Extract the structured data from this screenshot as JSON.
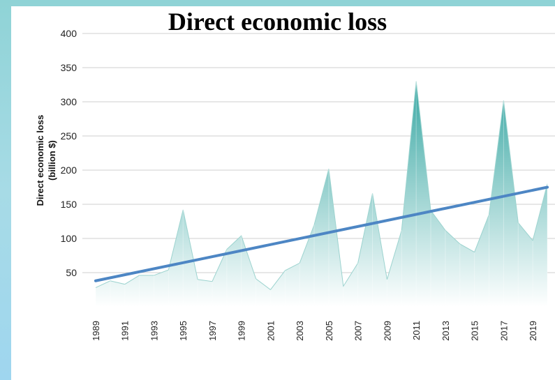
{
  "chart_data": {
    "type": "area",
    "title": "Direct economic loss",
    "xlabel": "",
    "ylabel": "Direct economic loss (billion $)",
    "ylabel_lines": [
      "Direct economic loss",
      "(billion $)"
    ],
    "ylim": [
      0,
      400
    ],
    "yticks": [
      50,
      100,
      150,
      200,
      250,
      300,
      350,
      400
    ],
    "xticks": [
      "1989",
      "1991",
      "1993",
      "1995",
      "1997",
      "1999",
      "2001",
      "2003",
      "2005",
      "2007",
      "2009",
      "2011",
      "2013",
      "2015",
      "2017",
      "2019"
    ],
    "x": [
      1989,
      1990,
      1991,
      1992,
      1993,
      1994,
      1995,
      1996,
      1997,
      1998,
      1999,
      2000,
      2001,
      2002,
      2003,
      2004,
      2005,
      2006,
      2007,
      2008,
      2009,
      2010,
      2011,
      2012,
      2013,
      2014,
      2015,
      2016,
      2017,
      2018,
      2019,
      2020
    ],
    "series": [
      {
        "values": [
          28,
          38,
          33,
          46,
          46,
          54,
          142,
          40,
          37,
          84,
          104,
          41,
          25,
          53,
          64,
          120,
          202,
          30,
          64,
          166,
          40,
          112,
          330,
          141,
          112,
          92,
          80,
          135,
          302,
          123,
          97,
          180
        ]
      }
    ],
    "trend": {
      "start": [
        1989,
        38
      ],
      "end": [
        2020,
        175
      ]
    },
    "grid": true,
    "area_color_top": "#3aa8a4",
    "area_color_bottom": "#ffffff",
    "trend_color": "#4d86c4",
    "grid_color": "#cfcfcf"
  }
}
